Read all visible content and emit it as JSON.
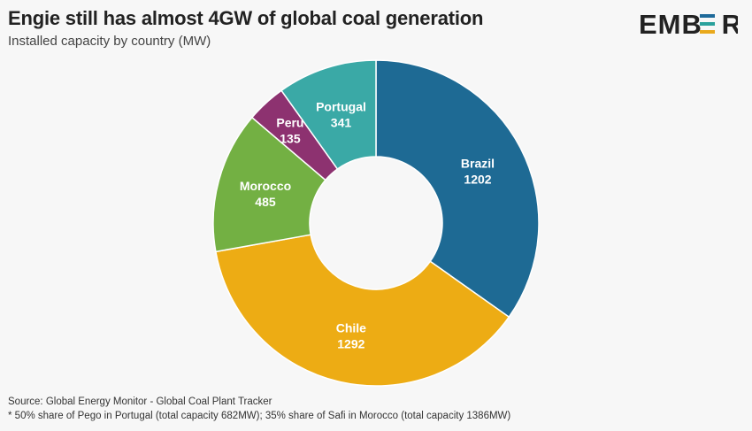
{
  "header": {
    "title": "Engie still has almost 4GW of global coal generation",
    "subtitle": "Installed capacity by country (MW)"
  },
  "logo": {
    "text": "EMBER",
    "left": "EMB",
    "mid": "E",
    "right": "R",
    "bar_colors": [
      "#1e6a9a",
      "#2aa19c",
      "#e9a91c"
    ]
  },
  "chart_data": {
    "type": "pie",
    "donut": true,
    "title": "Engie still has almost 4GW of global coal generation",
    "subtitle": "Installed capacity by country (MW)",
    "unit": "MW",
    "slices": [
      {
        "label": "Brazil",
        "value": 1202,
        "color": "#1e6a94"
      },
      {
        "label": "Chile",
        "value": 1292,
        "color": "#edac14"
      },
      {
        "label": "Morocco",
        "value": 485,
        "color": "#73b043"
      },
      {
        "label": "Peru",
        "value": 135,
        "color": "#8d3270"
      },
      {
        "label": "Portugal",
        "value": 341,
        "color": "#3aa9a6"
      }
    ]
  },
  "footer": {
    "source": "Source: Global Energy Monitor - Global Coal Plant Tracker",
    "note": "* 50% share of Pego in Portugal (total capacity 682MW); 35% share of Safi in Morocco (total capacity 1386MW)"
  }
}
